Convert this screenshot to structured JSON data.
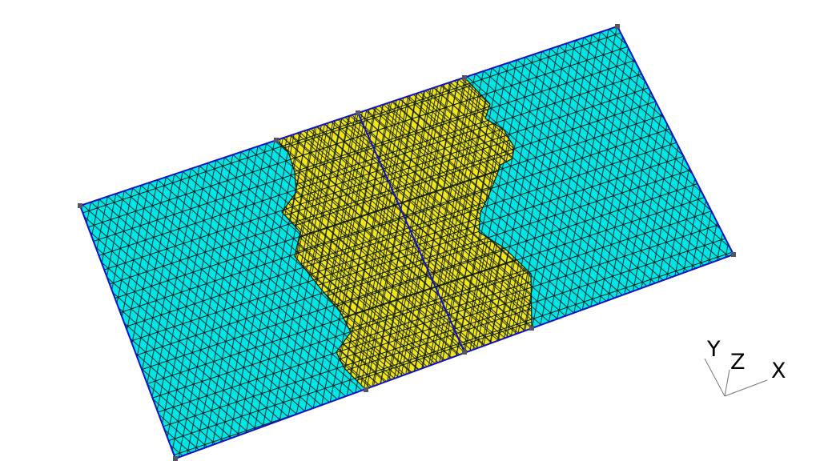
{
  "viewport": {
    "background": "#ffffff"
  },
  "mesh": {
    "outer_material_color": "#00e5e5",
    "inner_material_color": "#f2e51a",
    "element_edge_color": "#0b1a1a",
    "boundary_color": "#1010c8",
    "vertex_color": "#555566",
    "element_type": "triangle"
  },
  "axes": {
    "labels": {
      "y": "Y",
      "z": "Z",
      "x": "X"
    },
    "color": "#777777"
  }
}
